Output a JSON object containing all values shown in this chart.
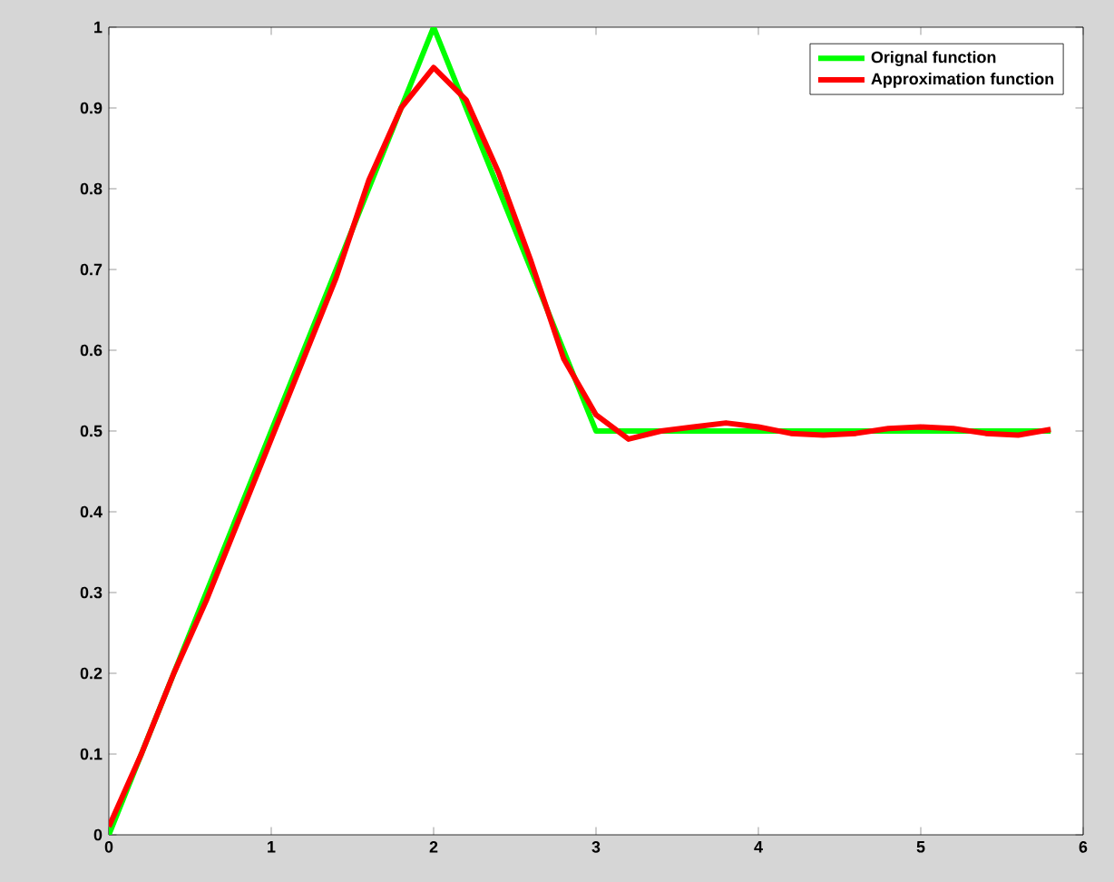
{
  "chart_data": {
    "type": "line",
    "xlim": [
      0,
      6
    ],
    "ylim": [
      0,
      1
    ],
    "xticks": [
      0,
      1,
      2,
      3,
      4,
      5,
      6
    ],
    "yticks": [
      0,
      0.1,
      0.2,
      0.3,
      0.4,
      0.5,
      0.6,
      0.7,
      0.8,
      0.9,
      1
    ],
    "legend": "top right",
    "grid": false,
    "line_style": "solid",
    "marker": "none",
    "series": [
      {
        "name": "Orignal function",
        "color": "#00ff00",
        "x": [
          0,
          2,
          3,
          5.8
        ],
        "values": [
          0,
          1,
          0.5,
          0.5
        ]
      },
      {
        "name": "Approximation function",
        "color": "#ff0000",
        "x": [
          0,
          0.2,
          0.4,
          0.6,
          0.8,
          1,
          1.2,
          1.4,
          1.6,
          1.8,
          2,
          2.2,
          2.4,
          2.6,
          2.8,
          3,
          3.2,
          3.4,
          3.6,
          3.8,
          4,
          4.2,
          4.4,
          4.6,
          4.8,
          5,
          5.2,
          5.4,
          5.6,
          5.8
        ],
        "values": [
          0.01,
          0.1,
          0.2,
          0.29,
          0.39,
          0.49,
          0.59,
          0.69,
          0.81,
          0.9,
          0.95,
          0.91,
          0.82,
          0.71,
          0.59,
          0.52,
          0.49,
          0.5,
          0.505,
          0.51,
          0.505,
          0.497,
          0.495,
          0.497,
          0.503,
          0.505,
          0.503,
          0.497,
          0.495,
          0.502
        ]
      }
    ]
  }
}
